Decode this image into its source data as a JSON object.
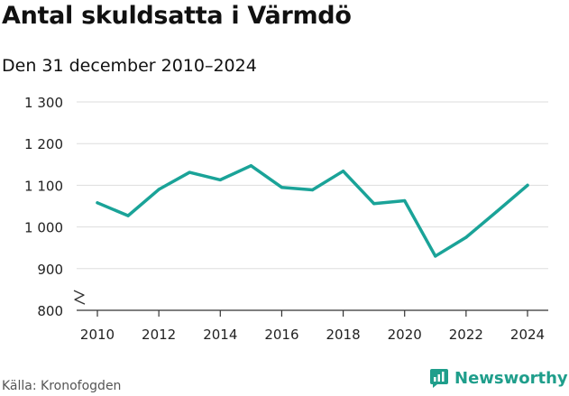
{
  "chart_data": {
    "type": "line",
    "title": "Antal skuldsatta i Värmdö",
    "subtitle": "Den 31 december 2010–2024",
    "x": [
      2010,
      2011,
      2012,
      2013,
      2014,
      2015,
      2016,
      2017,
      2018,
      2019,
      2020,
      2021,
      2022,
      2023,
      2024
    ],
    "series": [
      {
        "name": "Antal skuldsatta",
        "values": [
          1058,
          1027,
          1090,
          1131,
          1113,
          1147,
          1095,
          1089,
          1134,
          1056,
          1063,
          930,
          975,
          1037,
          1100
        ]
      }
    ],
    "xticks": [
      2010,
      2012,
      2014,
      2016,
      2018,
      2020,
      2022,
      2024
    ],
    "xtick_labels": [
      "2010",
      "2012",
      "2014",
      "2016",
      "2018",
      "2020",
      "2022",
      "2024"
    ],
    "yticks": [
      800,
      900,
      1000,
      1100,
      1200,
      1300
    ],
    "ytick_labels": [
      "800",
      "900",
      "1 000",
      "1 100",
      "1 200",
      "1 300"
    ],
    "ylim": [
      800,
      1300
    ],
    "axis_break": true,
    "grid": true,
    "xlabel": "",
    "ylabel": "",
    "line_color": "#1aa398",
    "grid_color": "#dddddd"
  },
  "footer": {
    "source": "Källa: Kronofogden",
    "brand": "Newsworthy",
    "brand_color": "#1f9e8b"
  }
}
